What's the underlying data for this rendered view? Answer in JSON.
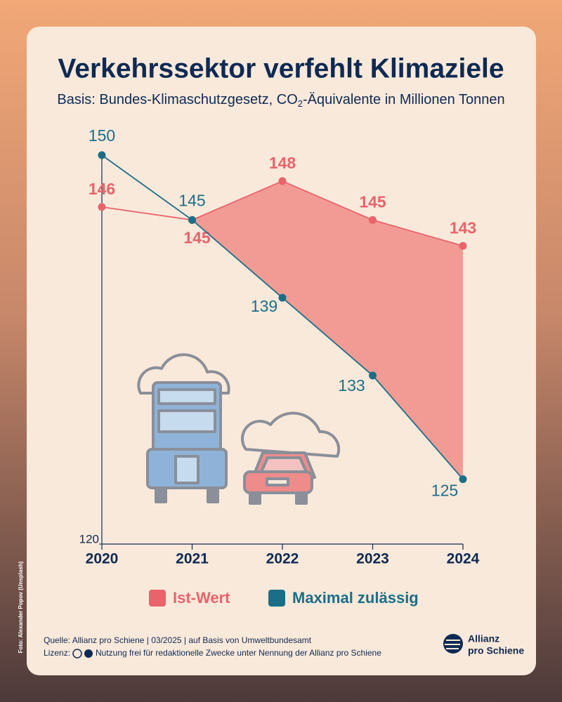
{
  "chart_data": {
    "type": "line",
    "title": "Verkehrssektor verfehlt Klimaziele",
    "subtitle": [
      "Basis: Bundes-Klimaschutzgesetz, CO",
      "2",
      "-Äquivalente in Millionen Tonnen"
    ],
    "categories": [
      "2020",
      "2021",
      "2022",
      "2023",
      "2024"
    ],
    "series": [
      {
        "name": "Ist-Wert",
        "color": "#e8636a",
        "values": [
          146,
          145,
          148,
          145,
          143
        ]
      },
      {
        "name": "Maximal zulässig",
        "color": "#1c6e87",
        "values": [
          150,
          145,
          139,
          133,
          125
        ]
      }
    ],
    "ylim": [
      120,
      150
    ],
    "yticks": [
      120
    ],
    "area_color": "#f29b95",
    "source": "Quelle: Allianz pro Schiene | 03/2025 | auf Basis von Umweltbundesamt",
    "license_label": "Lizenz:",
    "license_text": "Nutzung frei für redaktionelle Zwecke unter Nennung der Allianz pro Schiene",
    "logo": [
      "Allianz",
      "pro Schiene"
    ],
    "photo_credit": "Foto: Alexander Popov (Unsplash)"
  }
}
